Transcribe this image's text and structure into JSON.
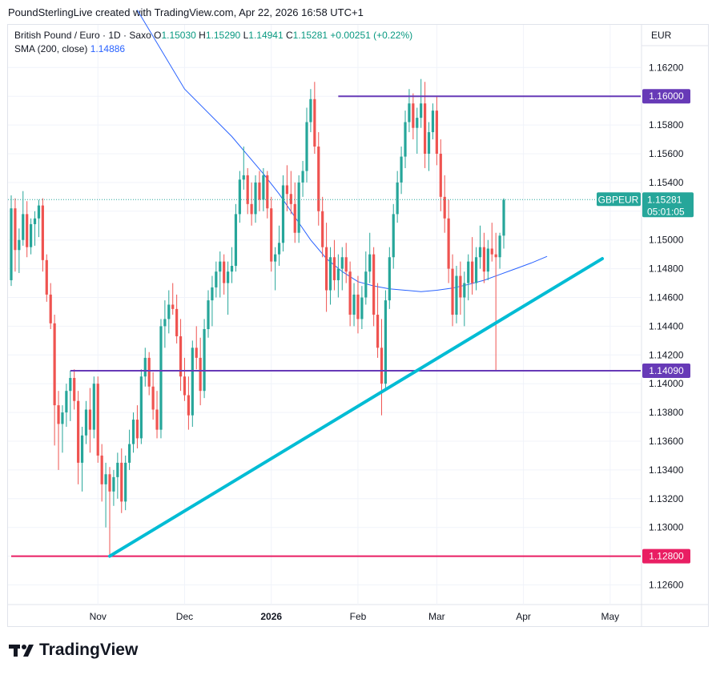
{
  "credit": "PoundSterlingLive created with TradingView.com, Apr 22, 2026 16:58 UTC+1",
  "legend": {
    "symbol": "British Pound / Euro · 1D · Saxo",
    "open_label": "O",
    "open": "1.15030",
    "high_label": "H",
    "high": "1.15290",
    "low_label": "L",
    "low": "1.14941",
    "close_label": "C",
    "close": "1.15281",
    "change": "+0.00251 (+0.22%)",
    "sma_label": "SMA (200, close)",
    "sma_value": "1.14886"
  },
  "currency": "EUR",
  "logo_text": "TradingView",
  "colors": {
    "up": "#26a69a",
    "down": "#ef5350",
    "sma": "#2962ff",
    "level": "#673ab7",
    "support": "#e91e63",
    "trend": "#00bcd4"
  },
  "chart_data": {
    "type": "candlestick",
    "title": "British Pound / Euro · 1D · Saxo",
    "y_axis": {
      "ticks": [
        "1.16200",
        "1.16000",
        "1.15800",
        "1.15600",
        "1.15400",
        "1.15200",
        "1.15000",
        "1.14800",
        "1.14600",
        "1.14400",
        "1.14200",
        "1.14000",
        "1.13800",
        "1.13600",
        "1.13400",
        "1.13200",
        "1.13000",
        "1.12800",
        "1.12600"
      ],
      "ylim": [
        1.1245,
        1.163
      ]
    },
    "x_axis": {
      "labels": [
        {
          "text": "Nov",
          "bold": false,
          "bar": 22
        },
        {
          "text": "Dec",
          "bold": false,
          "bar": 44
        },
        {
          "text": "2026",
          "bold": true,
          "bar": 66
        },
        {
          "text": "Feb",
          "bold": false,
          "bar": 88
        },
        {
          "text": "Mar",
          "bold": false,
          "bar": 108
        },
        {
          "text": "Apr",
          "bold": false,
          "bar": 130
        },
        {
          "text": "May",
          "bold": false,
          "bar": 152
        }
      ]
    },
    "last_price": {
      "label": "GBPEUR",
      "value": "1.15281",
      "countdown": "05:01:05"
    },
    "levels": [
      {
        "name": "resistance",
        "value": 1.16,
        "label": "1.16000",
        "from_bar": 83
      },
      {
        "name": "support-mid",
        "value": 1.1409,
        "label": "1.14090",
        "from_bar": 15
      },
      {
        "name": "support-low",
        "value": 1.128,
        "label": "1.12800",
        "from_bar": 0
      }
    ],
    "trendline": {
      "from": {
        "bar": 25,
        "value": 1.128
      },
      "to": {
        "bar": 150,
        "value": 1.1487
      }
    },
    "sma": {
      "name": "SMA (200, close)",
      "bars": [
        32,
        44,
        56,
        60,
        64,
        68,
        72,
        76,
        80,
        84,
        88,
        92,
        96,
        100,
        104,
        108,
        112,
        116,
        120,
        124,
        128,
        132,
        136
      ],
      "values": [
        1.166,
        1.1605,
        1.1572,
        1.1559,
        1.1546,
        1.1532,
        1.1516,
        1.15,
        1.1487,
        1.1478,
        1.1471,
        1.1468,
        1.1466,
        1.1465,
        1.1464,
        1.1465,
        1.14665,
        1.1469,
        1.1472,
        1.1476,
        1.148,
        1.1484,
        1.14886
      ]
    },
    "ohlc": [
      [
        1.1472,
        1.1531,
        1.1468,
        1.1522
      ],
      [
        1.1522,
        1.1529,
        1.1478,
        1.1493
      ],
      [
        1.1493,
        1.1508,
        1.1477,
        1.15
      ],
      [
        1.15,
        1.1534,
        1.1496,
        1.1518
      ],
      [
        1.1518,
        1.1527,
        1.1488,
        1.1495
      ],
      [
        1.1495,
        1.1515,
        1.149,
        1.1511
      ],
      [
        1.1511,
        1.152,
        1.1496,
        1.1515
      ],
      [
        1.1515,
        1.1528,
        1.1502,
        1.1524
      ],
      [
        1.1524,
        1.1529,
        1.1478,
        1.1486
      ],
      [
        1.1486,
        1.149,
        1.1457,
        1.1462
      ],
      [
        1.1462,
        1.147,
        1.1438,
        1.1442
      ],
      [
        1.1442,
        1.1448,
        1.1357,
        1.1385
      ],
      [
        1.1385,
        1.1395,
        1.134,
        1.1372
      ],
      [
        1.1372,
        1.1385,
        1.1352,
        1.138
      ],
      [
        1.138,
        1.14,
        1.137,
        1.1395
      ],
      [
        1.1395,
        1.1409,
        1.1374,
        1.1404
      ],
      [
        1.1404,
        1.141,
        1.1382,
        1.1388
      ],
      [
        1.1388,
        1.1395,
        1.133,
        1.1345
      ],
      [
        1.1345,
        1.137,
        1.1325,
        1.1364
      ],
      [
        1.1364,
        1.1388,
        1.1358,
        1.1382
      ],
      [
        1.1382,
        1.1397,
        1.1352,
        1.1368
      ],
      [
        1.1368,
        1.1405,
        1.1362,
        1.14
      ],
      [
        1.14,
        1.1405,
        1.1345,
        1.135
      ],
      [
        1.135,
        1.1358,
        1.1318,
        1.133
      ],
      [
        1.133,
        1.1345,
        1.13,
        1.1337
      ],
      [
        1.1337,
        1.1342,
        1.128,
        1.1325
      ],
      [
        1.1325,
        1.134,
        1.1315,
        1.1335
      ],
      [
        1.1335,
        1.1352,
        1.132,
        1.1345
      ],
      [
        1.1345,
        1.1355,
        1.131,
        1.1318
      ],
      [
        1.1318,
        1.135,
        1.1312,
        1.1345
      ],
      [
        1.1345,
        1.1368,
        1.134,
        1.1358
      ],
      [
        1.1358,
        1.138,
        1.1352,
        1.1375
      ],
      [
        1.1375,
        1.1385,
        1.1355,
        1.1362
      ],
      [
        1.1362,
        1.141,
        1.1358,
        1.1405
      ],
      [
        1.1405,
        1.1425,
        1.1398,
        1.1418
      ],
      [
        1.1418,
        1.1422,
        1.1392,
        1.1398
      ],
      [
        1.1398,
        1.1408,
        1.1375,
        1.1382
      ],
      [
        1.1382,
        1.1395,
        1.1362,
        1.1368
      ],
      [
        1.1368,
        1.1445,
        1.1362,
        1.144
      ],
      [
        1.144,
        1.1458,
        1.1425,
        1.1445
      ],
      [
        1.1445,
        1.1465,
        1.1435,
        1.1455
      ],
      [
        1.1455,
        1.147,
        1.1448,
        1.1452
      ],
      [
        1.1452,
        1.1462,
        1.1428,
        1.1433
      ],
      [
        1.1433,
        1.1445,
        1.1395,
        1.1405
      ],
      [
        1.1405,
        1.1418,
        1.1388,
        1.1392
      ],
      [
        1.1392,
        1.1405,
        1.1368,
        1.1378
      ],
      [
        1.1378,
        1.143,
        1.137,
        1.1425
      ],
      [
        1.1425,
        1.144,
        1.141,
        1.1418
      ],
      [
        1.1418,
        1.1432,
        1.1385,
        1.1395
      ],
      [
        1.1395,
        1.1445,
        1.139,
        1.1438
      ],
      [
        1.1438,
        1.1465,
        1.1432,
        1.1458
      ],
      [
        1.1458,
        1.1475,
        1.144,
        1.1467
      ],
      [
        1.1467,
        1.1485,
        1.146,
        1.1478
      ],
      [
        1.1478,
        1.1492,
        1.146,
        1.1485
      ],
      [
        1.1485,
        1.149,
        1.1462,
        1.147
      ],
      [
        1.147,
        1.1485,
        1.1448,
        1.1478
      ],
      [
        1.1478,
        1.1495,
        1.147,
        1.1482
      ],
      [
        1.1482,
        1.1525,
        1.1478,
        1.1518
      ],
      [
        1.1518,
        1.1548,
        1.1512,
        1.1542
      ],
      [
        1.1542,
        1.1565,
        1.1535,
        1.1545
      ],
      [
        1.1545,
        1.155,
        1.1518,
        1.1525
      ],
      [
        1.1525,
        1.154,
        1.151,
        1.1518
      ],
      [
        1.1518,
        1.1545,
        1.1512,
        1.154
      ],
      [
        1.154,
        1.1548,
        1.152,
        1.1528
      ],
      [
        1.1528,
        1.155,
        1.152,
        1.1545
      ],
      [
        1.1545,
        1.1548,
        1.1515,
        1.1522
      ],
      [
        1.1522,
        1.153,
        1.1478,
        1.1485
      ],
      [
        1.1485,
        1.1495,
        1.1465,
        1.149
      ],
      [
        1.149,
        1.151,
        1.1482,
        1.1498
      ],
      [
        1.1498,
        1.1545,
        1.1492,
        1.1538
      ],
      [
        1.1538,
        1.1552,
        1.152,
        1.1532
      ],
      [
        1.1532,
        1.1548,
        1.1518,
        1.1525
      ],
      [
        1.1525,
        1.154,
        1.1498,
        1.1505
      ],
      [
        1.1505,
        1.1545,
        1.1498,
        1.154
      ],
      [
        1.154,
        1.1555,
        1.153,
        1.1548
      ],
      [
        1.1548,
        1.1592,
        1.154,
        1.1582
      ],
      [
        1.1582,
        1.1605,
        1.1575,
        1.1598
      ],
      [
        1.1598,
        1.161,
        1.156,
        1.1565
      ],
      [
        1.1565,
        1.1575,
        1.151,
        1.152
      ],
      [
        1.152,
        1.153,
        1.1488,
        1.1495
      ],
      [
        1.1495,
        1.1512,
        1.145,
        1.1465
      ],
      [
        1.1465,
        1.1495,
        1.1455,
        1.1488
      ],
      [
        1.1488,
        1.15,
        1.1465,
        1.1472
      ],
      [
        1.1472,
        1.149,
        1.146,
        1.148
      ],
      [
        1.148,
        1.1495,
        1.1465,
        1.1488
      ],
      [
        1.1488,
        1.1498,
        1.147,
        1.1478
      ],
      [
        1.1478,
        1.1485,
        1.144,
        1.1448
      ],
      [
        1.1448,
        1.147,
        1.144,
        1.1462
      ],
      [
        1.1462,
        1.1475,
        1.1435,
        1.1445
      ],
      [
        1.1445,
        1.1468,
        1.1438,
        1.146
      ],
      [
        1.146,
        1.1492,
        1.1455,
        1.1478
      ],
      [
        1.1478,
        1.1505,
        1.147,
        1.149
      ],
      [
        1.149,
        1.1495,
        1.144,
        1.1448
      ],
      [
        1.1448,
        1.147,
        1.1418,
        1.1425
      ],
      [
        1.1425,
        1.1445,
        1.1378,
        1.14
      ],
      [
        1.14,
        1.1465,
        1.1395,
        1.1458
      ],
      [
        1.1458,
        1.1495,
        1.1452,
        1.1488
      ],
      [
        1.1488,
        1.1525,
        1.148,
        1.1518
      ],
      [
        1.1518,
        1.1548,
        1.1512,
        1.154
      ],
      [
        1.154,
        1.1565,
        1.1532,
        1.1558
      ],
      [
        1.1558,
        1.159,
        1.155,
        1.1582
      ],
      [
        1.1582,
        1.1605,
        1.1575,
        1.1595
      ],
      [
        1.1595,
        1.1602,
        1.157,
        1.1578
      ],
      [
        1.1578,
        1.1592,
        1.156,
        1.1585
      ],
      [
        1.1585,
        1.1612,
        1.1578,
        1.1595
      ],
      [
        1.1595,
        1.161,
        1.155,
        1.156
      ],
      [
        1.156,
        1.1582,
        1.1548,
        1.1575
      ],
      [
        1.1575,
        1.1595,
        1.157,
        1.159
      ],
      [
        1.159,
        1.16,
        1.1552,
        1.156
      ],
      [
        1.156,
        1.157,
        1.152,
        1.153
      ],
      [
        1.153,
        1.1545,
        1.1505,
        1.1515
      ],
      [
        1.1515,
        1.1528,
        1.147,
        1.148
      ],
      [
        1.148,
        1.149,
        1.144,
        1.1448
      ],
      [
        1.1448,
        1.1482,
        1.1442,
        1.1475
      ],
      [
        1.1475,
        1.1485,
        1.1448,
        1.146
      ],
      [
        1.146,
        1.1478,
        1.144,
        1.147
      ],
      [
        1.147,
        1.149,
        1.1458,
        1.1485
      ],
      [
        1.1485,
        1.1502,
        1.1462,
        1.147
      ],
      [
        1.147,
        1.1495,
        1.1465,
        1.1488
      ],
      [
        1.1488,
        1.151,
        1.148,
        1.1495
      ],
      [
        1.1495,
        1.1505,
        1.147,
        1.1478
      ],
      [
        1.1478,
        1.15,
        1.1472,
        1.1494
      ],
      [
        1.1494,
        1.1512,
        1.1485,
        1.149
      ],
      [
        1.149,
        1.1505,
        1.1409,
        1.1488
      ],
      [
        1.1488,
        1.1505,
        1.148,
        1.1503
      ],
      [
        1.1503,
        1.1529,
        1.1494,
        1.1528
      ]
    ]
  }
}
